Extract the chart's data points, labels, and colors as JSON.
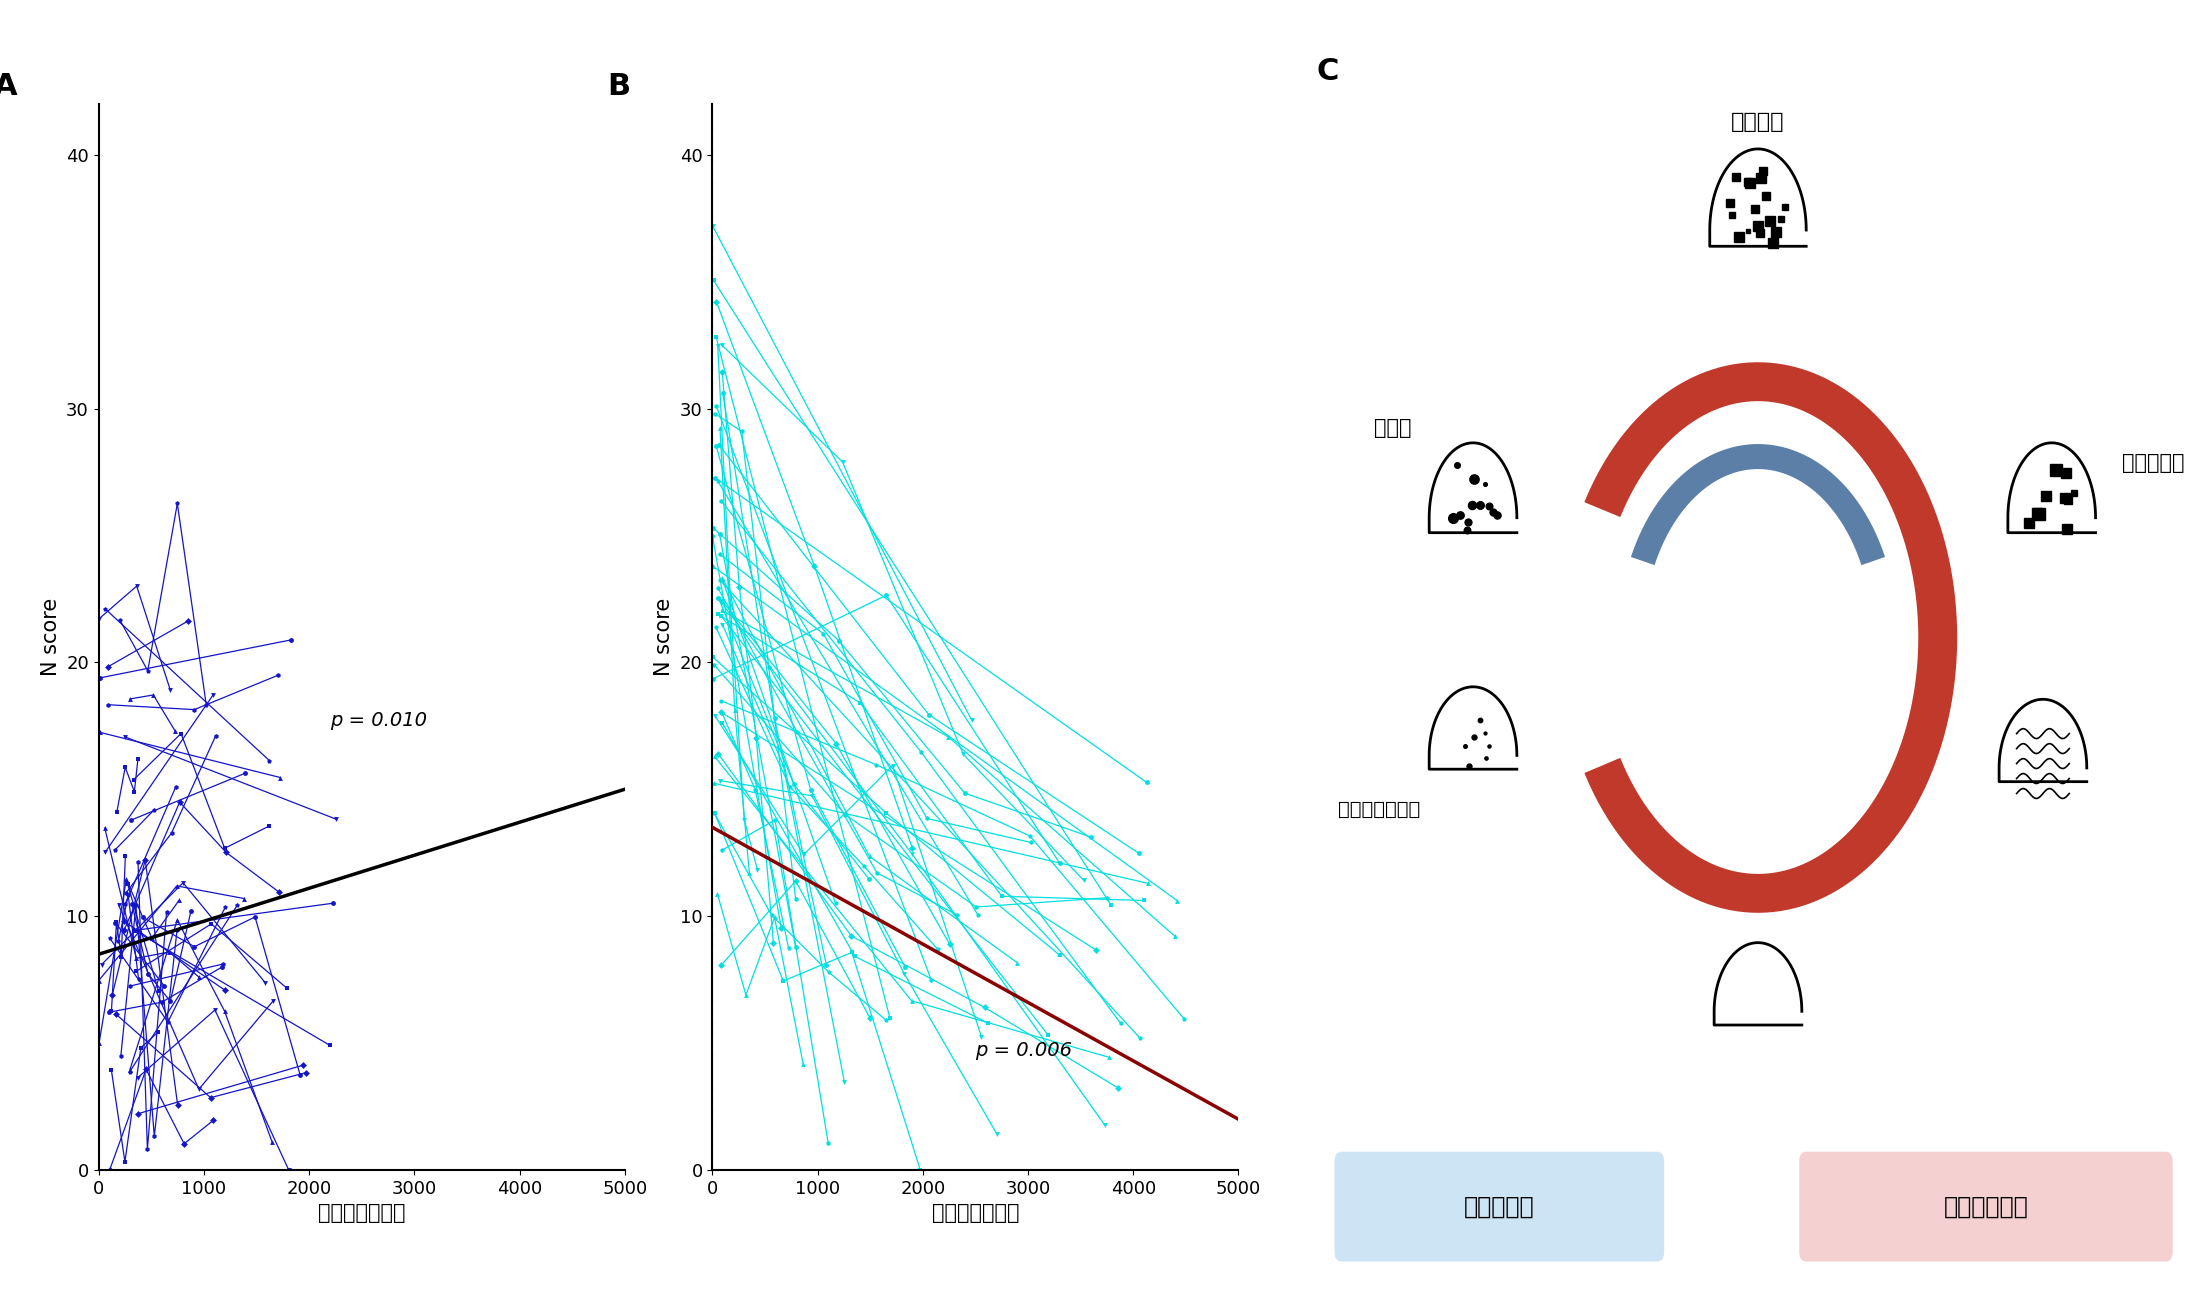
{
  "panel_A_label": "A",
  "panel_B_label": "B",
  "panel_C_label": "C",
  "panel_A_xlabel": "診断後経過日数",
  "panel_A_ylabel": "N score",
  "panel_B_xlabel": "治療開始後日数",
  "panel_B_ylabel": "N score",
  "panel_A_pvalue": "p = 0.010",
  "panel_B_pvalue": "p = 0.006",
  "panel_A_color": "#1414c8",
  "panel_B_color": "#00e0e0",
  "panel_A_trend_color": "#000000",
  "panel_B_trend_color": "#8b0000",
  "xlim": [
    0,
    5000
  ],
  "ylim": [
    0,
    42
  ],
  "xticks": [
    0,
    1000,
    2000,
    3000,
    4000,
    5000
  ],
  "yticks": [
    0,
    10,
    20,
    30,
    40
  ],
  "label_cavity": "空洞形成",
  "label_infiltrate": "浸潤影",
  "label_nodule": "粒状影・結節影",
  "label_bronchi": "気管支拡張",
  "label_reversible": "可逆性因子",
  "label_irreversible": "不可逆性因子",
  "red_arrow_color": "#c0392b",
  "blue_arrow_color": "#5b7fa6",
  "box_reversible_color": "#cde4f5",
  "box_irreversible_color": "#f5d0d0"
}
